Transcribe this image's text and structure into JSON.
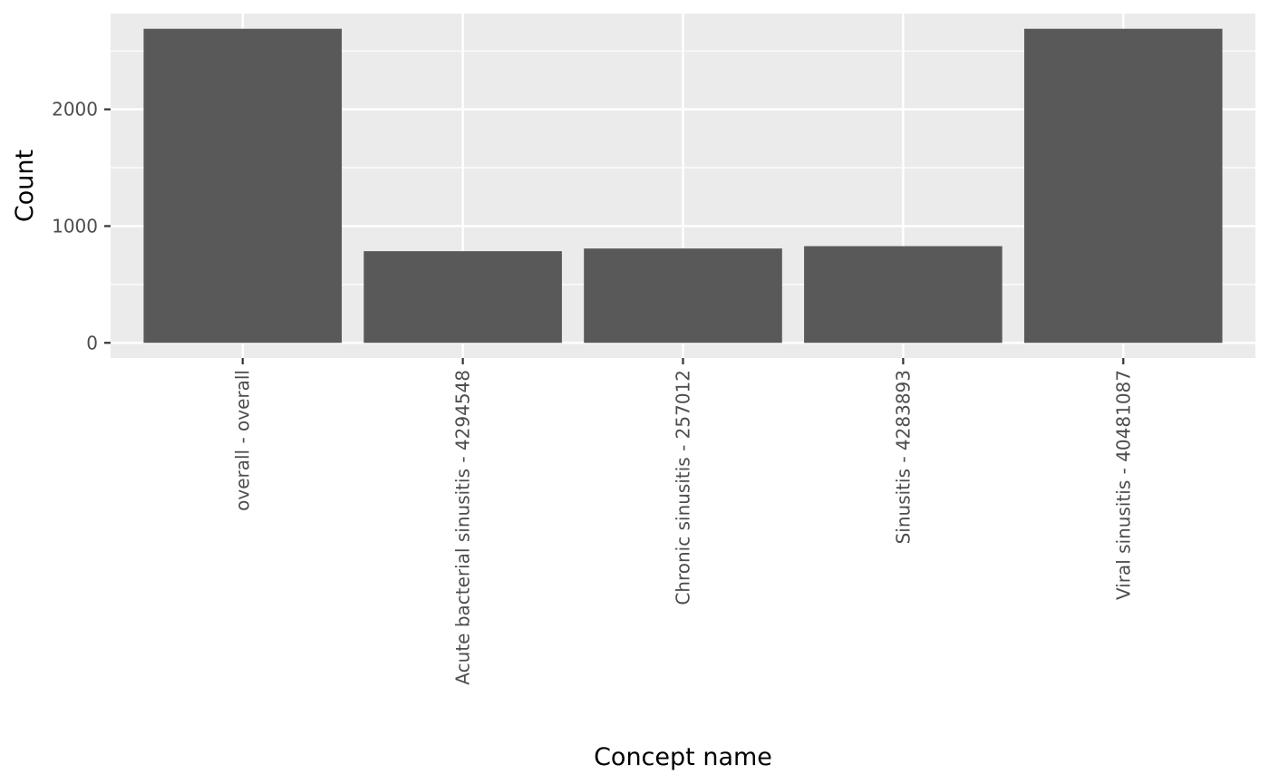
{
  "chart_data": {
    "type": "bar",
    "categories": [
      "overall - overall",
      "Acute bacterial sinusitis - 4294548",
      "Chronic sinusitis - 257012",
      "Sinusitis - 4283893",
      "Viral sinusitis - 40481087"
    ],
    "values": [
      2690,
      785,
      808,
      828,
      2690
    ],
    "title": "",
    "xlabel": "Concept name",
    "ylabel": "Count",
    "ylim": [
      -130,
      2820
    ],
    "yticks": [
      0,
      1000,
      2000
    ],
    "grid": true,
    "legend": "none",
    "colors": {
      "bar": "#595959",
      "panel": "#ebebeb",
      "grid": "#ffffff",
      "tick_text": "#4d4d4d",
      "axis_title": "#000000"
    }
  }
}
